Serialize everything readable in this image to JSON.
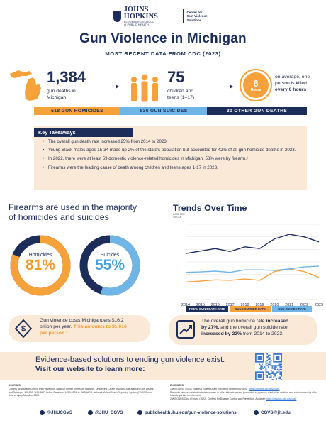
{
  "header": {
    "logo_main": "JOHNS HOPKINS",
    "logo_sub1": "BLOOMBERG SCHOOL",
    "logo_sub2": "of PUBLIC HEALTH",
    "center_line1": "Center for",
    "center_line2": "Gun Violence Solutions",
    "title": "Gun Violence in Michigan",
    "subtitle": "MOST RECENT DATA FROM CDC (2023)"
  },
  "stats": {
    "deaths_number": "1,384",
    "deaths_line1": "gun deaths in",
    "deaths_line2": "Michigan",
    "children_number": "75",
    "children_line1": "children and",
    "children_line2": "teens (1–17)",
    "clock_number": "6",
    "clock_unit": "Hours",
    "every_line1": "on average, one",
    "every_line2": "person is killed",
    "every_line3": "every 6 hours"
  },
  "breakdown": [
    {
      "label": "518 GUN HOMICIDES",
      "color": "#f6a13a",
      "text_color": "#1c2d5a"
    },
    {
      "label": "836 GUN SUICIDES",
      "color": "#6fb6e6",
      "text_color": "#1c2d5a"
    },
    {
      "label": "30 OTHER GUN DEATHS",
      "color": "#1c2d5a",
      "text_color": "#ffffff"
    }
  ],
  "takeaways": {
    "heading": "Key Takeaways",
    "items": [
      "The overall gun death rate increased 25% from 2014 to 2023.",
      "Young Black males ages 15-34 made up 2% of the state's population but accounted for 42% of all gun homicide deaths in 2023.",
      "In 2022, there were at least 59 domestic violence-related homicides in Michigan. 58% were by firearm.¹",
      "Firearms were the leading cause of death among children and teens ages 1-17 in 2023."
    ]
  },
  "firearms": {
    "title_line1": "Firearms are used in the majority",
    "title_line2": "of homicides and suicides",
    "homicides_label": "Homicides",
    "homicides_value": "81%",
    "homicides_fraction": 0.81,
    "suicides_label": "Suicides",
    "suicides_value": "55%",
    "suicides_fraction": 0.55
  },
  "chart_data": {
    "type": "line",
    "title": "Trends Over Time",
    "ylabel_line1": "RATE PER",
    "ylabel_line2": "100,000",
    "x": [
      2014,
      2015,
      2016,
      2017,
      2018,
      2019,
      2020,
      2021,
      2022,
      2023
    ],
    "ylim": [
      0,
      18
    ],
    "series": [
      {
        "name": "TOTAL GUN DEATH RATE",
        "color": "#1c2d5a",
        "values": [
          11.0,
          11.6,
          12.2,
          11.5,
          12.6,
          12.2,
          14.5,
          15.6,
          15.0,
          13.8
        ]
      },
      {
        "name": "GUN HOMICIDE RATE",
        "color": "#f6a13a",
        "values": [
          4.2,
          4.4,
          4.7,
          4.6,
          4.9,
          4.6,
          6.7,
          7.3,
          6.7,
          5.3
        ]
      },
      {
        "name": "GUN SUICIDE RATE",
        "color": "#6fb6e6",
        "values": [
          6.5,
          6.6,
          6.8,
          6.5,
          7.1,
          7.1,
          7.0,
          7.3,
          7.8,
          8.0
        ]
      }
    ]
  },
  "callouts": {
    "cost_line1": "Gun violence costs Michiganders $16.2",
    "cost_line2a": "billion per year.",
    "cost_line2b": "This amounts to $1,616",
    "cost_line3": "per person.²",
    "trend_line1a": "The overall gun homicide rate",
    "trend_line1b": "increased",
    "trend_line2a": "by 27%,",
    "trend_line2b": "and the overall gun suicide rate",
    "trend_line3a": "increased by 22%",
    "trend_line3b": "from 2014 to 2023."
  },
  "evidence": {
    "line1": "Evidence-based solutions to ending gun violence exist.",
    "line2": "Visit our website to learn more:"
  },
  "sources": {
    "heading": "SOURCES",
    "text": "Centers for Disease Control and Prevention, National Center for Health Statistics. Underlying Cause of Death. Age-adjusted Gun Deaths and Rates per 100,000. WONDER Online Database, 1999-2023. A. WISQARS. National Violent Death Reporting System (NVDRS) and Cost of Injury Modules. 2022."
  },
  "endnotes": {
    "heading": "ENDNOTES",
    "text1": "1 WISQARS. (2022). National Violent Death Reporting System (NVDRS).",
    "link1": "https://wisqars.cdc.gov/nvdrs",
    "text2": "Domestic violence-related includes: spouse or other intimate partner (current or ex), parent, child, other relative, and victim injured by other intimate partner involvement.",
    "text3": "2 WISQARS Cost of Injury. (2022). Centers for Disease Control and Prevention. Available:",
    "link3": "https://wisqars.cdc.gov/cost/"
  },
  "footer": {
    "facebook": "@JHUCGVS",
    "x": "@JHU_CGVS",
    "web": "publichealth.jhu.edu/gun-violence-solutions",
    "email": "CGVS@jh.edu"
  }
}
